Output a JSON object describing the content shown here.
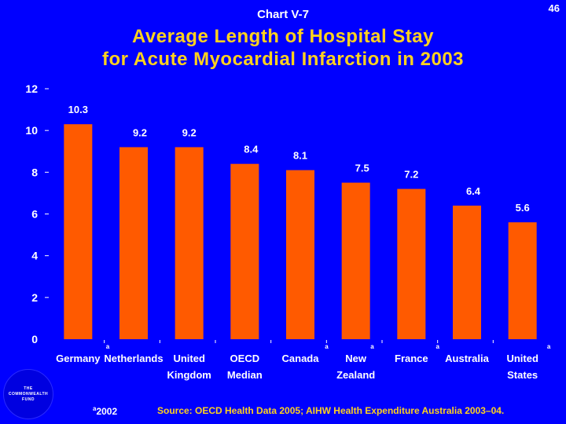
{
  "header": {
    "chart_number": "Chart V-7",
    "page_number": "46"
  },
  "title_line1": "Average Length of Hospital Stay",
  "title_line2": "for Acute Myocardial Infarction in 2003",
  "footnote": {
    "marker": "a",
    "text": "2002"
  },
  "source": "Source: OECD Health Data 2005; AIHW Health Expenditure Australia 2003–04.",
  "logo": {
    "line1": "THE",
    "line2": "COMMONWEALTH",
    "line3": "FUND"
  },
  "colors": {
    "background": "#0000FF",
    "bar": "#FF5A00",
    "title": "#FFD21E",
    "text": "#FFFFFF"
  },
  "chart_data": {
    "type": "bar",
    "title": "Average Length of Hospital Stay for Acute Myocardial Infarction in 2003",
    "xlabel": "",
    "ylabel": "",
    "ylim": [
      0,
      12
    ],
    "yticks": [
      0,
      2,
      4,
      6,
      8,
      10,
      12
    ],
    "categories": [
      {
        "line1": "Germany",
        "line2": "",
        "note": "a"
      },
      {
        "line1": "Netherlands",
        "line2": "",
        "note": ""
      },
      {
        "line1": "United",
        "line2": "Kingdom",
        "note": ""
      },
      {
        "line1": "OECD",
        "line2": "Median",
        "note": ""
      },
      {
        "line1": "Canada",
        "line2": "",
        "note": "a"
      },
      {
        "line1": "New",
        "line2": "Zealand",
        "note": "a"
      },
      {
        "line1": "France",
        "line2": "",
        "note": "a"
      },
      {
        "line1": "Australia",
        "line2": "",
        "note": ""
      },
      {
        "line1": "United",
        "line2": "States",
        "note": "a"
      }
    ],
    "values": [
      10.3,
      9.2,
      9.2,
      8.4,
      8.1,
      7.5,
      7.2,
      6.4,
      5.6
    ],
    "value_labels": [
      "10.3",
      "9.2",
      "9.2",
      "8.4",
      "8.1",
      "7.5",
      "7.2",
      "6.4",
      "5.6"
    ]
  }
}
